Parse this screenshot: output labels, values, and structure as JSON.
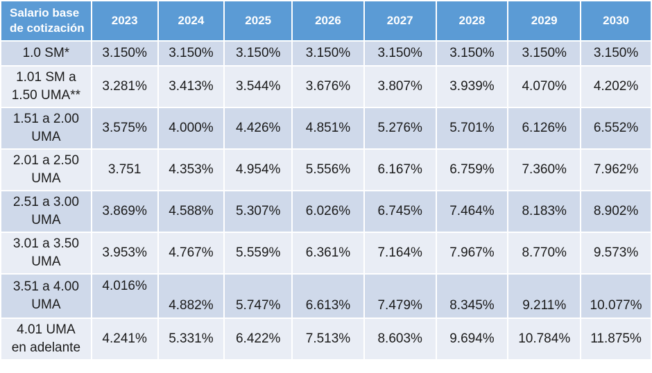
{
  "table": {
    "header_label": "Salario base\nde cotización",
    "years": [
      "2023",
      "2024",
      "2025",
      "2026",
      "2027",
      "2028",
      "2029",
      "2030"
    ],
    "rows": [
      {
        "label": "1.0 SM*",
        "values": [
          "3.150%",
          "3.150%",
          "3.150%",
          "3.150%",
          "3.150%",
          "3.150%",
          "3.150%",
          "3.150%"
        ]
      },
      {
        "label": "1.01 SM a\n1.50 UMA**",
        "values": [
          "3.281%",
          "3.413%",
          "3.544%",
          "3.676%",
          "3.807%",
          "3.939%",
          "4.070%",
          "4.202%"
        ]
      },
      {
        "label": "1.51 a 2.00\nUMA",
        "values": [
          "3.575%",
          "4.000%",
          "4.426%",
          "4.851%",
          "5.276%",
          "5.701%",
          "6.126%",
          "6.552%"
        ]
      },
      {
        "label": "2.01 a 2.50\nUMA",
        "values": [
          "3.751",
          "4.353%",
          "4.954%",
          "5.556%",
          "6.167%",
          "6.759%",
          "7.360%",
          "7.962%"
        ]
      },
      {
        "label": "2.51 a 3.00\nUMA",
        "values": [
          "3.869%",
          "4.588%",
          "5.307%",
          "6.026%",
          "6.745%",
          "7.464%",
          "8.183%",
          "8.902%"
        ]
      },
      {
        "label": "3.01 a 3.50\nUMA",
        "values": [
          "3.953%",
          "4.767%",
          "5.559%",
          "6.361%",
          "7.164%",
          "7.967%",
          "8.770%",
          "9.573%"
        ]
      },
      {
        "label": "3.51 a 4.00\nUMA",
        "values": [
          "4.016%",
          "4.882%",
          "5.747%",
          "6.613%",
          "7.479%",
          "8.345%",
          "9.211%",
          "10.077%"
        ]
      },
      {
        "label": "4.01 UMA\nen adelante",
        "values": [
          "4.241%",
          "5.331%",
          "6.422%",
          "7.513%",
          "8.603%",
          "9.694%",
          "10.784%",
          "11.875%"
        ]
      }
    ]
  },
  "colors": {
    "header_bg": "#5b9bd5",
    "row_odd_bg": "#cfd9ea",
    "row_even_bg": "#e9edf5"
  }
}
